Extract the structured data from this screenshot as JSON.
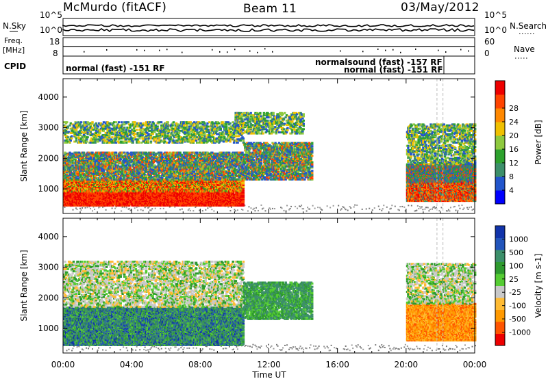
{
  "header": {
    "station": "McMurdo (fitACF)",
    "beam": "Beam 11",
    "date": "03/May/2012"
  },
  "strip": {
    "left_label_1": "N.Sky",
    "left_label_2a": "Freq.",
    "left_label_2b": "[MHz]",
    "left_label_3": "CPID",
    "right_label_1": "N.Search",
    "right_label_2": "Nave",
    "nsky_ticks": [
      "10^5",
      "10^0"
    ],
    "freq_ticks": [
      "18",
      "8"
    ],
    "nsearch_ticks": [
      "10^5",
      "10^0"
    ],
    "nave_ticks": [
      "60",
      "0"
    ],
    "cpid_1": "normal (fast) -151 RF",
    "cpid_2": "normalsound (fast) -157 RF",
    "cpid_3": "normal (fast) -151 RF"
  },
  "colors": {
    "power": [
      "#0000ff",
      "#2255cc",
      "#3c8f6a",
      "#2da12d",
      "#8ec93e",
      "#f0c000",
      "#ff8800",
      "#ff4400",
      "#ee0000"
    ],
    "velocity": [
      "#ee0000",
      "#ff5500",
      "#ff9900",
      "#ffbb33",
      "#c8c8c8",
      "#55cc33",
      "#2e9a2e",
      "#3c8f6a",
      "#2255bb",
      "#1133aa"
    ],
    "ground": "#999999"
  },
  "chart_data": [
    {
      "type": "heatmap",
      "name": "power",
      "xlabel": "",
      "ylabel": "Slant Range [km]",
      "x_ticks": [
        "00:00",
        "04:00",
        "08:00",
        "12:00",
        "16:00",
        "20:00",
        "00:00"
      ],
      "y_ticks": [
        1000,
        2000,
        3000,
        4000
      ],
      "ylim": [
        200,
        4600
      ],
      "xlim_hours": [
        0,
        24
      ],
      "colorbar_label": "Power [dB]",
      "colorbar_ticks": [
        4,
        8,
        12,
        16,
        20,
        24,
        28
      ],
      "regions": [
        {
          "t0": 0.0,
          "t1": 10.5,
          "r0": 450,
          "r1": 1300,
          "level": "strong"
        },
        {
          "t0": 0.0,
          "t1": 10.5,
          "r0": 1300,
          "r1": 2200,
          "level": "mixed"
        },
        {
          "t0": 0.0,
          "t1": 10.5,
          "r0": 2500,
          "r1": 3200,
          "level": "weak"
        },
        {
          "t0": 10.5,
          "t1": 14.5,
          "r0": 1300,
          "r1": 2500,
          "level": "mixed"
        },
        {
          "t0": 10.0,
          "t1": 14.0,
          "r0": 2800,
          "r1": 3500,
          "level": "weak"
        },
        {
          "t0": 20.0,
          "t1": 24.0,
          "r0": 600,
          "r1": 1800,
          "level": "mixed_strong"
        },
        {
          "t0": 20.0,
          "t1": 24.0,
          "r0": 1800,
          "r1": 3100,
          "level": "weak"
        }
      ]
    },
    {
      "type": "heatmap",
      "name": "velocity",
      "xlabel": "Time UT",
      "ylabel": "Slant Range [km]",
      "x_ticks": [
        "00:00",
        "04:00",
        "08:00",
        "12:00",
        "16:00",
        "20:00",
        "00:00"
      ],
      "y_ticks": [
        1000,
        2000,
        3000,
        4000
      ],
      "ylim": [
        200,
        4600
      ],
      "xlim_hours": [
        0,
        24
      ],
      "colorbar_label": "Velocity [m s-1]",
      "colorbar_ticks": [
        1000,
        500,
        100,
        25,
        -25,
        -100,
        -500,
        -1000
      ],
      "regions": [
        {
          "t0": 0.0,
          "t1": 10.5,
          "r0": 450,
          "r1": 1700,
          "level": "positive_mixed"
        },
        {
          "t0": 0.0,
          "t1": 10.5,
          "r0": 1700,
          "r1": 3200,
          "level": "near_zero"
        },
        {
          "t0": 10.5,
          "t1": 14.5,
          "r0": 1300,
          "r1": 2500,
          "level": "positive"
        },
        {
          "t0": 20.0,
          "t1": 24.0,
          "r0": 600,
          "r1": 1800,
          "level": "negative"
        },
        {
          "t0": 20.0,
          "t1": 24.0,
          "r0": 1800,
          "r1": 3100,
          "level": "near_zero"
        }
      ]
    }
  ]
}
